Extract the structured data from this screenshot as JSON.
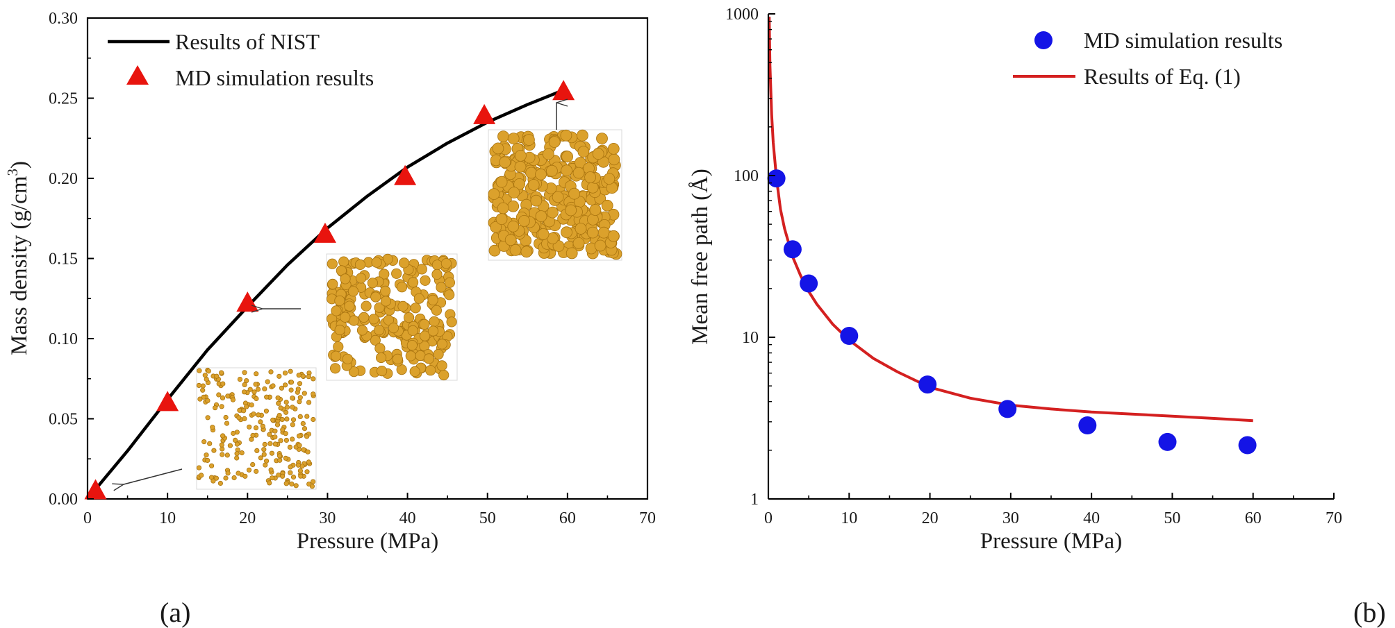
{
  "panel_labels": [
    "(a)",
    "(b)"
  ],
  "chart_data": [
    {
      "type": "line",
      "panel": "(a)",
      "xlabel": "Pressure (MPa)",
      "ylabel_text": "Mass density (g/cm",
      "ylabel_sup": "3",
      "ylabel_close": ")",
      "xlim": [
        0,
        70
      ],
      "ylim": [
        0,
        0.3
      ],
      "x_ticks": [
        "0",
        "10",
        "20",
        "30",
        "40",
        "50",
        "60",
        "70"
      ],
      "y_ticks": [
        "0.00",
        "0.05",
        "0.10",
        "0.15",
        "0.20",
        "0.25",
        "0.30"
      ],
      "legend_position": "top-left",
      "grid": false,
      "series": [
        {
          "name": "Results of NIST",
          "kind": "line",
          "color": "#000000",
          "x": [
            1,
            5,
            10,
            15,
            20,
            25,
            30,
            35,
            40,
            45,
            50,
            55,
            59.5
          ],
          "y": [
            0.006,
            0.03,
            0.062,
            0.093,
            0.12,
            0.146,
            0.169,
            0.189,
            0.207,
            0.222,
            0.235,
            0.246,
            0.255
          ]
        },
        {
          "name": "MD simulation results",
          "kind": "marker-triangle",
          "color": "#e8140e",
          "x": [
            1,
            10,
            20,
            29.7,
            39.7,
            49.6,
            59.5
          ],
          "y": [
            0.005,
            0.06,
            0.122,
            0.165,
            0.201,
            0.239,
            0.254
          ]
        }
      ]
    },
    {
      "type": "scatter",
      "panel": "(b)",
      "xlabel": "Pressure (MPa)",
      "ylabel": "Mean free path (Å)",
      "xlim": [
        0,
        70
      ],
      "ylim": [
        1,
        1000
      ],
      "yscale": "log",
      "x_ticks": [
        "0",
        "10",
        "20",
        "30",
        "40",
        "50",
        "60",
        "70"
      ],
      "y_ticks": [
        "1",
        "10",
        "100",
        "1000"
      ],
      "legend_position": "top-right",
      "grid": false,
      "series": [
        {
          "name": "MD simulation results",
          "kind": "marker-circle",
          "color": "#1414e6",
          "x": [
            1,
            3,
            5,
            10,
            19.7,
            29.6,
            39.5,
            49.4,
            59.3
          ],
          "y": [
            96,
            35,
            21.5,
            10.2,
            5.1,
            3.6,
            2.85,
            2.25,
            2.15
          ]
        },
        {
          "name": "Results of Eq. (1)",
          "kind": "line",
          "color": "#d42020",
          "x": [
            0.1,
            0.2,
            0.4,
            0.6,
            1,
            1.5,
            2,
            3,
            4,
            5,
            6,
            8,
            10,
            13,
            16,
            20,
            25,
            30,
            35,
            40,
            45,
            50,
            55,
            60
          ],
          "y": [
            960,
            480,
            240,
            160,
            97,
            62,
            47,
            31.5,
            24,
            19.2,
            16,
            12,
            9.6,
            7.4,
            6.1,
            4.9,
            4.2,
            3.8,
            3.6,
            3.45,
            3.35,
            3.25,
            3.15,
            3.05
          ]
        }
      ]
    }
  ]
}
